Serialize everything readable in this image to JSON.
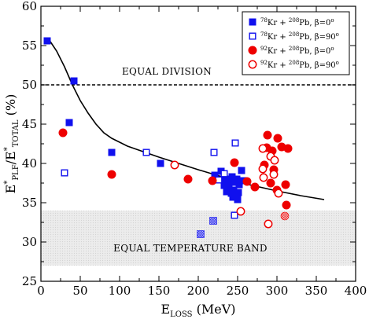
{
  "chart_data": {
    "type": "scatter",
    "title": "",
    "xlabel": {
      "main": "E",
      "sub": "LOSS",
      "tail": " (MeV)"
    },
    "ylabel": {
      "parts": [
        {
          "t": "E",
          "s": "main"
        },
        {
          "t": "*",
          "s": "sup"
        },
        {
          "t": "PLF",
          "s": "sub"
        },
        {
          "t": "/E",
          "s": "main"
        },
        {
          "t": "*",
          "s": "sup"
        },
        {
          "t": "TOTAL",
          "s": "sub"
        },
        {
          "t": " (%)",
          "s": "main"
        }
      ]
    },
    "xlim": [
      0,
      400
    ],
    "ylim": [
      25,
      60
    ],
    "x_ticks": [
      0,
      50,
      100,
      150,
      200,
      250,
      300,
      350,
      400
    ],
    "y_ticks": [
      25,
      30,
      35,
      40,
      45,
      50,
      55,
      60
    ],
    "equal_division": {
      "y": 50,
      "label": "EQUAL DIVISION",
      "label_x": 160,
      "label_y": 51.3
    },
    "equal_temperature_band": {
      "y_range": [
        27,
        34
      ],
      "x_range": [
        0,
        400
      ],
      "label": "EQUAL TEMPERATURE BAND",
      "label_x": 190,
      "label_y": 28.8
    },
    "fit_curve": {
      "x": [
        10,
        20,
        30,
        40,
        50,
        60,
        70,
        80,
        90,
        100,
        110,
        130,
        150,
        175,
        200,
        230,
        260,
        300,
        330,
        360
      ],
      "y": [
        55.8,
        54.3,
        52.3,
        50.0,
        48.0,
        46.4,
        45.0,
        43.9,
        43.2,
        42.7,
        42.2,
        41.5,
        40.8,
        40.0,
        39.2,
        38.3,
        37.4,
        36.5,
        35.9,
        35.4
      ]
    },
    "series": [
      {
        "name": "78Kr + 208Pb, β=0°",
        "marker": "filled-square",
        "color": "#1010ee",
        "legend_label": {
          "a": "78",
          "b": "Kr + ",
          "c": "208",
          "d": "Pb, β=0",
          "e": "o"
        },
        "points": [
          {
            "x": 8,
            "y": 55.6
          },
          {
            "x": 42,
            "y": 50.5
          },
          {
            "x": 36,
            "y": 45.2
          },
          {
            "x": 90,
            "y": 41.4
          },
          {
            "x": 152,
            "y": 40.0
          },
          {
            "x": 221,
            "y": 38.5
          },
          {
            "x": 229,
            "y": 39.0
          },
          {
            "x": 234,
            "y": 38.0
          },
          {
            "x": 237,
            "y": 37.5
          },
          {
            "x": 240,
            "y": 37.8
          },
          {
            "x": 243,
            "y": 38.3
          },
          {
            "x": 246,
            "y": 37.6
          },
          {
            "x": 249,
            "y": 38.0
          },
          {
            "x": 252,
            "y": 37.3
          },
          {
            "x": 255,
            "y": 39.1
          },
          {
            "x": 258,
            "y": 37.8
          },
          {
            "x": 239,
            "y": 36.8
          },
          {
            "x": 242,
            "y": 36.2
          },
          {
            "x": 245,
            "y": 36.6
          },
          {
            "x": 248,
            "y": 35.9
          },
          {
            "x": 251,
            "y": 36.3
          },
          {
            "x": 250,
            "y": 35.4
          },
          {
            "x": 244,
            "y": 35.7
          },
          {
            "x": 236,
            "y": 36.4
          },
          {
            "x": 233,
            "y": 37.2
          }
        ]
      },
      {
        "name": "78Kr + 208Pb, β=90°",
        "marker": "open-square",
        "color": "#1010ee",
        "legend_label": {
          "a": "78",
          "b": "Kr + ",
          "c": "208",
          "d": "Pb, β=90",
          "e": "o"
        },
        "points": [
          {
            "x": 30,
            "y": 38.8
          },
          {
            "x": 134,
            "y": 41.4
          },
          {
            "x": 220,
            "y": 41.4
          },
          {
            "x": 247,
            "y": 42.6
          },
          {
            "x": 233,
            "y": 38.7
          },
          {
            "x": 226,
            "y": 37.9
          },
          {
            "x": 246,
            "y": 33.4
          }
        ]
      },
      {
        "name": "92Kr + 208Pb, β=0°",
        "marker": "filled-circle",
        "color": "#ee0000",
        "legend_label": {
          "a": "92",
          "b": "Kr + ",
          "c": "208",
          "d": "Pb, β=0",
          "e": "o"
        },
        "points": [
          {
            "x": 28,
            "y": 43.9
          },
          {
            "x": 90,
            "y": 38.6
          },
          {
            "x": 187,
            "y": 38.0
          },
          {
            "x": 218,
            "y": 37.8
          },
          {
            "x": 246,
            "y": 40.1
          },
          {
            "x": 262,
            "y": 37.7
          },
          {
            "x": 272,
            "y": 37.0
          },
          {
            "x": 288,
            "y": 43.6
          },
          {
            "x": 287,
            "y": 42.0
          },
          {
            "x": 294,
            "y": 41.6
          },
          {
            "x": 301,
            "y": 43.2
          },
          {
            "x": 306,
            "y": 42.1
          },
          {
            "x": 314,
            "y": 41.9
          },
          {
            "x": 284,
            "y": 39.8
          },
          {
            "x": 296,
            "y": 39.2
          },
          {
            "x": 292,
            "y": 37.5
          },
          {
            "x": 300,
            "y": 36.6
          },
          {
            "x": 311,
            "y": 37.3
          },
          {
            "x": 312,
            "y": 34.7
          }
        ]
      },
      {
        "name": "92Kr + 208Pb, β=90°",
        "marker": "open-circle",
        "color": "#ee0000",
        "legend_label": {
          "a": "92",
          "b": "Kr + ",
          "c": "208",
          "d": "Pb, β=90",
          "e": "o"
        },
        "points": [
          {
            "x": 170,
            "y": 39.8
          },
          {
            "x": 254,
            "y": 33.9
          },
          {
            "x": 282,
            "y": 41.9
          },
          {
            "x": 292,
            "y": 40.9
          },
          {
            "x": 297,
            "y": 40.4
          },
          {
            "x": 282,
            "y": 39.3
          },
          {
            "x": 283,
            "y": 38.2
          },
          {
            "x": 296,
            "y": 38.6
          },
          {
            "x": 302,
            "y": 36.2
          },
          {
            "x": 289,
            "y": 32.3
          }
        ]
      },
      {
        "name": "in-band squares",
        "marker": "hatched-square",
        "color": "#1010ee",
        "in_legend": false,
        "points": [
          {
            "x": 203,
            "y": 31.0
          },
          {
            "x": 219,
            "y": 32.7
          }
        ]
      },
      {
        "name": "in-band circle",
        "marker": "hatched-circle",
        "color": "#ee0000",
        "in_legend": false,
        "points": [
          {
            "x": 310,
            "y": 33.3
          }
        ]
      }
    ],
    "legend_placement": "top-right",
    "grid": false
  }
}
